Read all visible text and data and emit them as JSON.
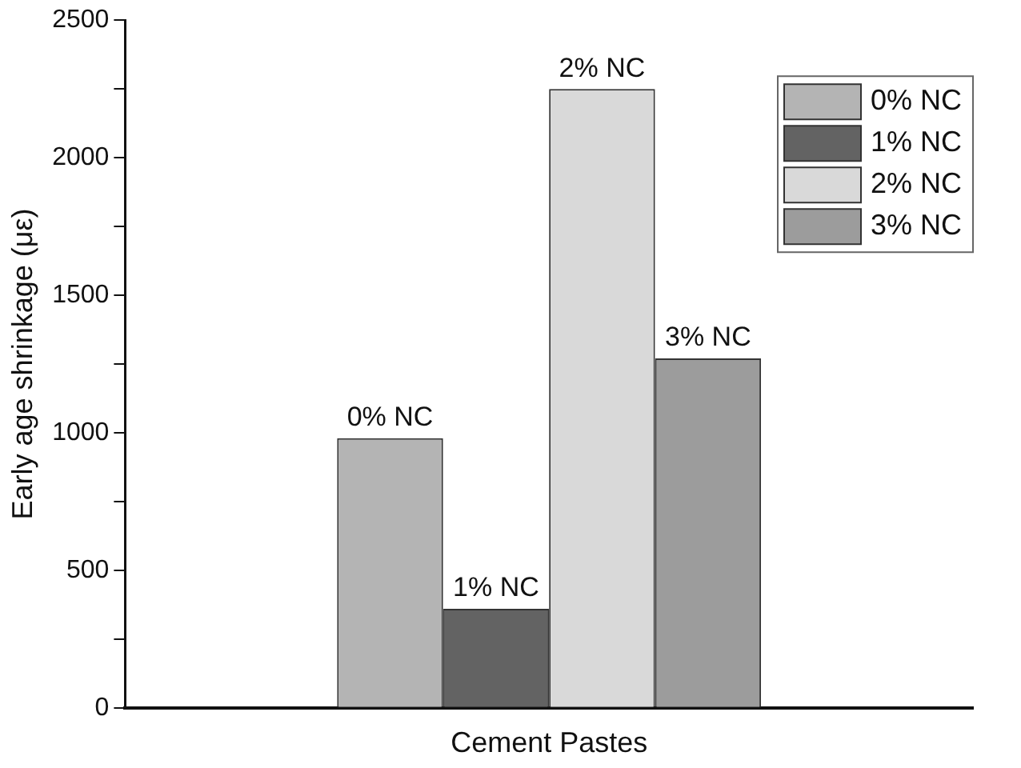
{
  "chart_data": {
    "type": "bar",
    "xlabel": "Cement Pastes",
    "ylabel": "Early age shrinkage (με)",
    "categories": [
      null
    ],
    "series": [
      {
        "name": "0% NC",
        "color": "#b4b4b4",
        "values": [
          980
        ]
      },
      {
        "name": "1% NC",
        "color": "#636363",
        "values": [
          360
        ]
      },
      {
        "name": "2% NC",
        "color": "#d9d9d9",
        "values": [
          2250
        ]
      },
      {
        "name": "3% NC",
        "color": "#9c9c9c",
        "values": [
          1270
        ]
      }
    ],
    "ylim": [
      0,
      2500
    ],
    "yticks": [
      0,
      {
        "value": 250,
        "label": null
      },
      500,
      {
        "value": 750,
        "label": null
      },
      1000,
      {
        "value": 1250,
        "label": null
      },
      1500,
      {
        "value": 1750,
        "label": null
      },
      2000,
      {
        "value": 2250,
        "label": null
      },
      2500
    ],
    "grid": false,
    "legend": "top right"
  }
}
